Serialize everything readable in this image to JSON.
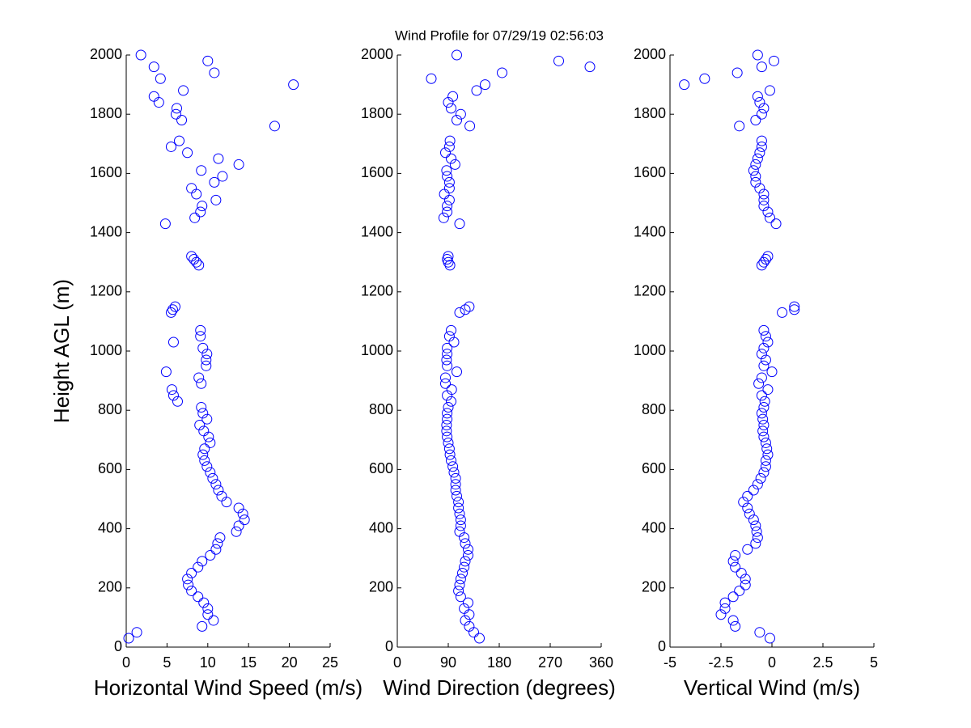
{
  "title": "Wind Profile for  07/29/19 02:56:03",
  "chart_data": [
    {
      "type": "scatter",
      "xlabel": "Horizontal Wind Speed (m/s)",
      "ylabel": "Height AGL (m)",
      "color": "#0000ff",
      "xlim": [
        0,
        25
      ],
      "xticks": [
        0,
        5,
        10,
        15,
        20,
        25
      ],
      "ylim": [
        0,
        2000
      ],
      "yticks": [
        0,
        200,
        400,
        600,
        800,
        1000,
        1200,
        1400,
        1600,
        1800,
        2000
      ],
      "x": [
        0.3,
        1.3,
        9.3,
        10.7,
        10,
        10,
        9.5,
        8.8,
        8,
        7.6,
        7.5,
        8,
        8.8,
        9.3,
        10.3,
        11,
        11.2,
        11.5,
        13.5,
        13.8,
        14.5,
        14.3,
        13.8,
        12.3,
        11.7,
        11.3,
        11,
        10.6,
        10.3,
        9.9,
        9.6,
        9.4,
        9.6,
        10.3,
        10.1,
        9.5,
        9,
        9.9,
        9.4,
        9.2,
        6.3,
        5.8,
        5.6,
        9.2,
        8.9,
        4.9,
        9.8,
        9.8,
        9.9,
        9.4,
        5.8,
        9.1,
        9.1,
        5.5,
        5.7,
        6,
        8.9,
        8.6,
        8.3,
        8,
        4.8,
        8.4,
        9.1,
        9.3,
        11,
        8.6,
        8,
        10.8,
        11.8,
        9.2,
        13.8,
        11.3,
        7.5,
        5.5,
        6.5,
        18.2,
        6.8,
        6.1,
        6.2,
        4,
        3.4,
        7,
        20.5,
        4.2,
        10.8,
        3.4,
        10,
        1.8
      ],
      "values": [
        30,
        50,
        70,
        90,
        110,
        130,
        150,
        170,
        190,
        210,
        230,
        250,
        270,
        290,
        310,
        330,
        350,
        370,
        390,
        410,
        430,
        450,
        470,
        490,
        510,
        530,
        550,
        570,
        590,
        610,
        630,
        650,
        670,
        690,
        710,
        730,
        750,
        770,
        790,
        810,
        830,
        850,
        870,
        890,
        910,
        930,
        950,
        970,
        990,
        1010,
        1030,
        1050,
        1070,
        1130,
        1140,
        1150,
        1290,
        1300,
        1310,
        1320,
        1430,
        1450,
        1470,
        1490,
        1510,
        1530,
        1550,
        1570,
        1590,
        1610,
        1630,
        1650,
        1670,
        1690,
        1710,
        1760,
        1780,
        1800,
        1820,
        1840,
        1860,
        1880,
        1900,
        1920,
        1940,
        1960,
        1980,
        2000
      ]
    },
    {
      "type": "scatter",
      "xlabel": "Wind Direction (degrees)",
      "color": "#0000ff",
      "xlim": [
        0,
        360
      ],
      "xticks": [
        0,
        90,
        180,
        270,
        360
      ],
      "ylim": [
        0,
        2000
      ],
      "yticks": [
        0,
        200,
        400,
        600,
        800,
        1000,
        1200,
        1400,
        1600,
        1800,
        2000
      ],
      "x": [
        145,
        135,
        127,
        120,
        127,
        118,
        125,
        112,
        108,
        110,
        112,
        115,
        118,
        120,
        125,
        125,
        120,
        118,
        110,
        112,
        112,
        110,
        108,
        108,
        105,
        103,
        103,
        103,
        100,
        98,
        95,
        93,
        92,
        90,
        88,
        87,
        87,
        88,
        88,
        90,
        95,
        88,
        96,
        85,
        85,
        105,
        88,
        87,
        88,
        88,
        100,
        92,
        95,
        110,
        120,
        127,
        93,
        90,
        88,
        90,
        110,
        82,
        88,
        88,
        92,
        83,
        92,
        92,
        88,
        87,
        102,
        95,
        85,
        92,
        93,
        128,
        105,
        112,
        95,
        90,
        98,
        140,
        155,
        60,
        185,
        340,
        285,
        105
      ],
      "values": [
        30,
        50,
        70,
        90,
        110,
        130,
        150,
        170,
        190,
        210,
        230,
        250,
        270,
        290,
        310,
        330,
        350,
        370,
        390,
        410,
        430,
        450,
        470,
        490,
        510,
        530,
        550,
        570,
        590,
        610,
        630,
        650,
        670,
        690,
        710,
        730,
        750,
        770,
        790,
        810,
        830,
        850,
        870,
        890,
        910,
        930,
        950,
        970,
        990,
        1010,
        1030,
        1050,
        1070,
        1130,
        1140,
        1150,
        1290,
        1300,
        1310,
        1320,
        1430,
        1450,
        1470,
        1490,
        1510,
        1530,
        1550,
        1570,
        1590,
        1610,
        1630,
        1650,
        1670,
        1690,
        1710,
        1760,
        1780,
        1800,
        1820,
        1840,
        1860,
        1880,
        1900,
        1920,
        1940,
        1960,
        1980,
        2000
      ]
    },
    {
      "type": "scatter",
      "xlabel": "Vertical Wind (m/s)",
      "color": "#0000ff",
      "xlim": [
        -5,
        5
      ],
      "xticks": [
        -5,
        -2.5,
        0,
        2.5,
        5
      ],
      "ylim": [
        0,
        2000
      ],
      "yticks": [
        0,
        200,
        400,
        600,
        800,
        1000,
        1200,
        1400,
        1600,
        1800,
        2000
      ],
      "x": [
        -0.1,
        -0.6,
        -1.8,
        -1.9,
        -2.5,
        -2.3,
        -2.3,
        -1.9,
        -1.6,
        -1.3,
        -1.3,
        -1.5,
        -1.8,
        -1.9,
        -1.8,
        -1.2,
        -0.8,
        -0.7,
        -0.75,
        -0.8,
        -0.9,
        -1.1,
        -1.2,
        -1.4,
        -1.2,
        -0.9,
        -0.7,
        -0.55,
        -0.4,
        -0.3,
        -0.3,
        -0.2,
        -0.25,
        -0.3,
        -0.4,
        -0.45,
        -0.4,
        -0.45,
        -0.5,
        -0.4,
        -0.35,
        -0.5,
        -0.2,
        -0.65,
        -0.5,
        0,
        -0.4,
        -0.3,
        -0.5,
        -0.4,
        -0.2,
        -0.3,
        -0.4,
        0.5,
        1.1,
        1.1,
        -0.5,
        -0.4,
        -0.3,
        -0.2,
        0.2,
        -0.1,
        -0.2,
        -0.4,
        -0.4,
        -0.4,
        -0.6,
        -0.8,
        -0.8,
        -0.9,
        -0.8,
        -0.7,
        -0.6,
        -0.5,
        -0.5,
        -1.6,
        -0.8,
        -0.5,
        -0.4,
        -0.6,
        -0.7,
        -0.1,
        -4.3,
        -3.3,
        -1.7,
        -0.5,
        0.1,
        -0.7
      ],
      "values": [
        30,
        50,
        70,
        90,
        110,
        130,
        150,
        170,
        190,
        210,
        230,
        250,
        270,
        290,
        310,
        330,
        350,
        370,
        390,
        410,
        430,
        450,
        470,
        490,
        510,
        530,
        550,
        570,
        590,
        610,
        630,
        650,
        670,
        690,
        710,
        730,
        750,
        770,
        790,
        810,
        830,
        850,
        870,
        890,
        910,
        930,
        950,
        970,
        990,
        1010,
        1030,
        1050,
        1070,
        1130,
        1140,
        1150,
        1290,
        1300,
        1310,
        1320,
        1430,
        1450,
        1470,
        1490,
        1510,
        1530,
        1550,
        1570,
        1590,
        1610,
        1630,
        1650,
        1670,
        1690,
        1710,
        1760,
        1780,
        1800,
        1820,
        1840,
        1860,
        1880,
        1900,
        1920,
        1940,
        1960,
        1980,
        2000
      ]
    }
  ]
}
